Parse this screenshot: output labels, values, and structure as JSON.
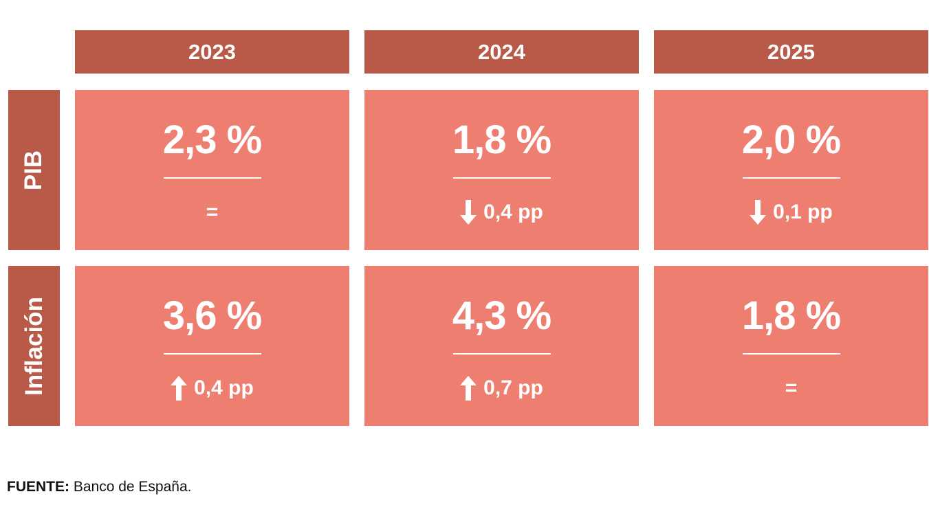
{
  "columns": [
    "2023",
    "2024",
    "2025"
  ],
  "rows": [
    {
      "label": "PIB",
      "cells": [
        {
          "value": "2,3 %",
          "direction": "none",
          "change": "="
        },
        {
          "value": "1,8 %",
          "direction": "down",
          "change": "0,4 pp"
        },
        {
          "value": "2,0 %",
          "direction": "down",
          "change": "0,1 pp"
        }
      ]
    },
    {
      "label": "Inflación",
      "cells": [
        {
          "value": "3,6 %",
          "direction": "up",
          "change": "0,4 pp"
        },
        {
          "value": "4,3 %",
          "direction": "up",
          "change": "0,7 pp"
        },
        {
          "value": "1,8 %",
          "direction": "none",
          "change": "="
        }
      ]
    }
  ],
  "source": {
    "label": "FUENTE:",
    "text": "Banco de España."
  },
  "colors": {
    "header": "#b85a47",
    "cell": "#ee7e70",
    "text": "#ffffff"
  },
  "icons": {
    "up": "arrow-up-icon",
    "down": "arrow-down-icon"
  }
}
